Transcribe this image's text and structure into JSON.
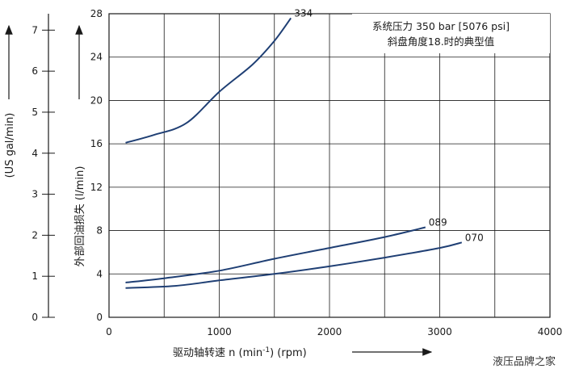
{
  "chart_data": {
    "type": "line",
    "xlabel_main": "驱动轴转速 n (min",
    "xlabel_sup": "-1",
    "xlabel_tail": ") (rpm)",
    "ylabel_left": "外部回油损失 (l/min)",
    "ylabel_secondary": "(US gal/min)",
    "xlim": [
      0,
      4000
    ],
    "ylim": [
      0,
      28
    ],
    "ylim_secondary": [
      0,
      7.4
    ],
    "xticks": [
      "0",
      "1000",
      "2000",
      "3000",
      "4000"
    ],
    "yticks": [
      "0",
      "4",
      "8",
      "12",
      "16",
      "20",
      "24",
      "28"
    ],
    "yticks_secondary": [
      "0",
      "1",
      "2",
      "3",
      "4",
      "5",
      "6",
      "7"
    ],
    "grid": true,
    "annotation_line1": "系统压力 350 bar [5076 psi]",
    "annotation_line2": "斜盘角度18.时的典型值",
    "series": [
      {
        "name": "334",
        "color": "#1f3f74",
        "points": [
          [
            150,
            16.1
          ],
          [
            400,
            16.8
          ],
          [
            700,
            17.9
          ],
          [
            1000,
            20.8
          ],
          [
            1300,
            23.3
          ],
          [
            1500,
            25.5
          ],
          [
            1650,
            27.6
          ]
        ]
      },
      {
        "name": "089",
        "color": "#1f3f74",
        "points": [
          [
            150,
            3.2
          ],
          [
            500,
            3.6
          ],
          [
            1000,
            4.3
          ],
          [
            1500,
            5.4
          ],
          [
            2000,
            6.4
          ],
          [
            2500,
            7.4
          ],
          [
            2870,
            8.3
          ]
        ]
      },
      {
        "name": "070",
        "color": "#1f3f74",
        "points": [
          [
            150,
            2.7
          ],
          [
            600,
            2.9
          ],
          [
            1000,
            3.4
          ],
          [
            1500,
            4.0
          ],
          [
            2000,
            4.7
          ],
          [
            2500,
            5.5
          ],
          [
            3000,
            6.4
          ],
          [
            3200,
            6.9
          ]
        ]
      }
    ]
  },
  "watermark": "液压品牌之家"
}
